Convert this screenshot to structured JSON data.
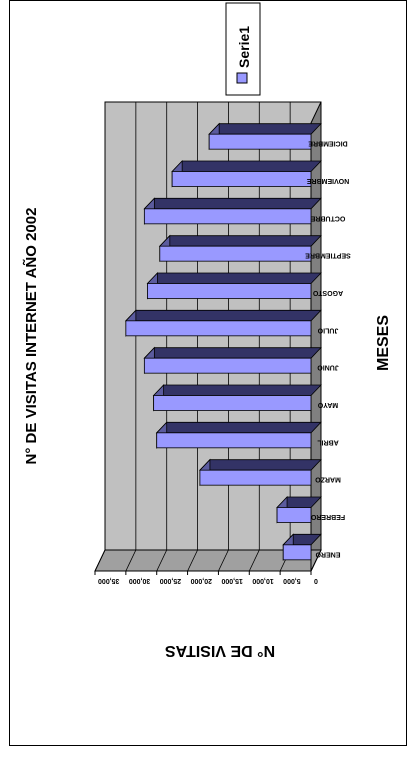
{
  "chart_data": {
    "type": "bar",
    "title": "N° DE VISITAS INTERNET AÑO 2002",
    "xlabel": "MESES",
    "ylabel": "N° DE VISITAS",
    "categories": [
      "ENERO",
      "FEBRERO",
      "MARZO",
      "ABRIL",
      "MAYO",
      "JUNIO",
      "JULIO",
      "AGOSTO",
      "SEPTIEMBRE",
      "OCTUBRE",
      "NOVIEMBRE",
      "DICIEMBRE"
    ],
    "series": [
      {
        "name": "Serie1",
        "values": [
          4500,
          5500,
          18000,
          25000,
          25500,
          27000,
          30000,
          26500,
          24500,
          27000,
          22500,
          16500
        ]
      }
    ],
    "ylim": [
      0,
      35000
    ],
    "yticks": [
      "0",
      "5,000",
      "10,000",
      "15,000",
      "20,000",
      "25,000",
      "30,000",
      "35,000"
    ],
    "grid": true,
    "legend": "top-right",
    "colors": {
      "bar": "#9999ff",
      "bar_top": "#333366",
      "wall": "#c0c0c0",
      "floor": "#808080"
    }
  }
}
